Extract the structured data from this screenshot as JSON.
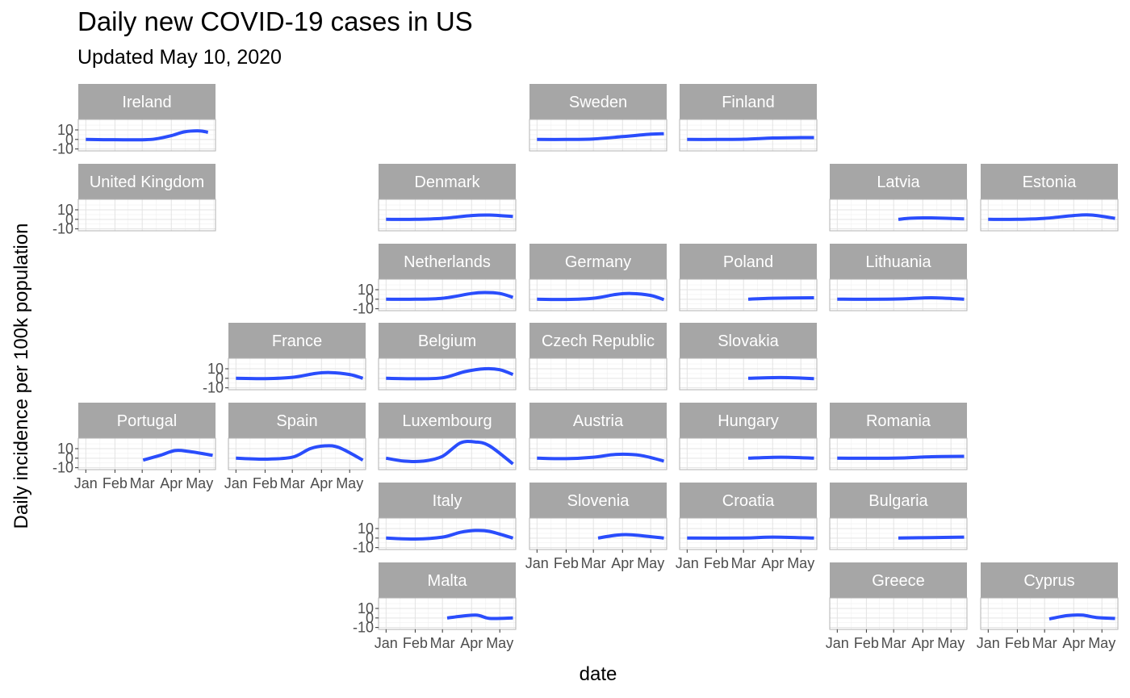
{
  "chart_data": {
    "type": "line",
    "title": "Daily new COVID-19 cases in US",
    "subtitle": "Updated May 10, 2020",
    "xlabel": "date",
    "ylabel": "Daily incidence per 100k population",
    "x_ticks": [
      "Jan",
      "Feb",
      "Mar",
      "Apr",
      "May"
    ],
    "y_ticks": [
      -10,
      0,
      10
    ],
    "ylim": [
      -12,
      21
    ],
    "x_range": [
      "2019-12-24",
      "2020-05-18"
    ],
    "layout": "geographic facet grid",
    "line_color": "#2a4dfc",
    "strip_color": "#a6a6a6",
    "series": [
      {
        "name": "Ireland",
        "points": [
          [
            "2020-01-01",
            0
          ],
          [
            "2020-01-20",
            -0.2
          ],
          [
            "2020-02-10",
            -0.3
          ],
          [
            "2020-03-01",
            -0.3
          ],
          [
            "2020-03-15",
            0.5
          ],
          [
            "2020-04-01",
            4
          ],
          [
            "2020-04-15",
            8
          ],
          [
            "2020-05-01",
            9
          ],
          [
            "2020-05-10",
            7.5
          ]
        ]
      },
      {
        "name": "United Kingdom",
        "points": []
      },
      {
        "name": "Sweden",
        "points": [
          [
            "2020-01-01",
            0
          ],
          [
            "2020-02-01",
            0
          ],
          [
            "2020-03-01",
            0.5
          ],
          [
            "2020-04-01",
            3
          ],
          [
            "2020-05-01",
            5.5
          ],
          [
            "2020-05-15",
            6
          ]
        ]
      },
      {
        "name": "Finland",
        "points": [
          [
            "2020-01-01",
            0
          ],
          [
            "2020-02-01",
            0
          ],
          [
            "2020-03-01",
            0.3
          ],
          [
            "2020-04-01",
            1.5
          ],
          [
            "2020-05-01",
            2
          ],
          [
            "2020-05-15",
            2
          ]
        ]
      },
      {
        "name": "Denmark",
        "points": [
          [
            "2020-01-01",
            0
          ],
          [
            "2020-02-01",
            0
          ],
          [
            "2020-03-01",
            1
          ],
          [
            "2020-04-01",
            4
          ],
          [
            "2020-04-20",
            4.5
          ],
          [
            "2020-05-15",
            3
          ]
        ]
      },
      {
        "name": "Latvia",
        "points": [
          [
            "2020-03-06",
            0
          ],
          [
            "2020-03-20",
            1.2
          ],
          [
            "2020-04-10",
            1.5
          ],
          [
            "2020-05-15",
            0.5
          ]
        ]
      },
      {
        "name": "Estonia",
        "points": [
          [
            "2020-01-01",
            0
          ],
          [
            "2020-02-01",
            0
          ],
          [
            "2020-03-01",
            1
          ],
          [
            "2020-04-01",
            4
          ],
          [
            "2020-04-20",
            4.5
          ],
          [
            "2020-05-15",
            1
          ]
        ]
      },
      {
        "name": "Netherlands",
        "points": [
          [
            "2020-01-01",
            0
          ],
          [
            "2020-02-01",
            0
          ],
          [
            "2020-03-01",
            1
          ],
          [
            "2020-04-01",
            6
          ],
          [
            "2020-04-15",
            7
          ],
          [
            "2020-05-01",
            6
          ],
          [
            "2020-05-15",
            2
          ]
        ]
      },
      {
        "name": "Germany",
        "points": [
          [
            "2020-01-01",
            0
          ],
          [
            "2020-02-01",
            -0.2
          ],
          [
            "2020-03-01",
            1
          ],
          [
            "2020-03-25",
            5
          ],
          [
            "2020-04-10",
            6
          ],
          [
            "2020-05-01",
            4
          ],
          [
            "2020-05-15",
            -0.5
          ]
        ]
      },
      {
        "name": "Poland",
        "points": [
          [
            "2020-03-06",
            0
          ],
          [
            "2020-04-01",
            1
          ],
          [
            "2020-05-15",
            1.5
          ]
        ]
      },
      {
        "name": "Lithuania",
        "points": [
          [
            "2020-01-01",
            0
          ],
          [
            "2020-03-01",
            0.2
          ],
          [
            "2020-04-10",
            1.5
          ],
          [
            "2020-05-15",
            0
          ]
        ]
      },
      {
        "name": "France",
        "points": [
          [
            "2020-01-01",
            0
          ],
          [
            "2020-02-01",
            -0.3
          ],
          [
            "2020-03-01",
            1
          ],
          [
            "2020-03-25",
            5
          ],
          [
            "2020-04-10",
            6
          ],
          [
            "2020-05-01",
            4
          ],
          [
            "2020-05-15",
            0
          ]
        ]
      },
      {
        "name": "Belgium",
        "points": [
          [
            "2020-01-01",
            0
          ],
          [
            "2020-02-01",
            -0.5
          ],
          [
            "2020-03-01",
            0.5
          ],
          [
            "2020-03-25",
            7
          ],
          [
            "2020-04-15",
            10
          ],
          [
            "2020-05-01",
            9
          ],
          [
            "2020-05-15",
            4
          ]
        ]
      },
      {
        "name": "Czech Republic",
        "points": []
      },
      {
        "name": "Slovakia",
        "points": [
          [
            "2020-03-06",
            0
          ],
          [
            "2020-04-10",
            0.8
          ],
          [
            "2020-05-15",
            -0.3
          ]
        ]
      },
      {
        "name": "Portugal",
        "points": [
          [
            "2020-03-02",
            -2
          ],
          [
            "2020-03-20",
            3
          ],
          [
            "2020-04-05",
            8
          ],
          [
            "2020-04-20",
            7
          ],
          [
            "2020-05-15",
            3
          ]
        ]
      },
      {
        "name": "Spain",
        "points": [
          [
            "2020-01-01",
            0
          ],
          [
            "2020-02-01",
            -1
          ],
          [
            "2020-03-01",
            1
          ],
          [
            "2020-03-20",
            10
          ],
          [
            "2020-04-05",
            13
          ],
          [
            "2020-04-20",
            11
          ],
          [
            "2020-05-15",
            -2
          ]
        ]
      },
      {
        "name": "Luxembourg",
        "points": [
          [
            "2020-01-01",
            0
          ],
          [
            "2020-01-20",
            -3
          ],
          [
            "2020-02-10",
            -3
          ],
          [
            "2020-03-01",
            2
          ],
          [
            "2020-03-20",
            16
          ],
          [
            "2020-04-05",
            17
          ],
          [
            "2020-04-20",
            13
          ],
          [
            "2020-05-15",
            -6
          ]
        ]
      },
      {
        "name": "Austria",
        "points": [
          [
            "2020-01-01",
            0
          ],
          [
            "2020-02-01",
            -0.5
          ],
          [
            "2020-03-01",
            1
          ],
          [
            "2020-03-25",
            4
          ],
          [
            "2020-04-20",
            3
          ],
          [
            "2020-05-15",
            -3
          ]
        ]
      },
      {
        "name": "Hungary",
        "points": [
          [
            "2020-03-06",
            0
          ],
          [
            "2020-04-10",
            1
          ],
          [
            "2020-05-15",
            0
          ]
        ]
      },
      {
        "name": "Romania",
        "points": [
          [
            "2020-01-01",
            0
          ],
          [
            "2020-03-01",
            0
          ],
          [
            "2020-04-10",
            1.5
          ],
          [
            "2020-05-15",
            2
          ]
        ]
      },
      {
        "name": "Italy",
        "points": [
          [
            "2020-01-01",
            0
          ],
          [
            "2020-02-01",
            -1
          ],
          [
            "2020-03-01",
            1
          ],
          [
            "2020-03-20",
            6
          ],
          [
            "2020-04-05",
            8
          ],
          [
            "2020-04-20",
            7
          ],
          [
            "2020-05-15",
            0
          ]
        ]
      },
      {
        "name": "Slovenia",
        "points": [
          [
            "2020-03-06",
            0
          ],
          [
            "2020-03-25",
            3
          ],
          [
            "2020-04-10",
            3.5
          ],
          [
            "2020-05-15",
            0
          ]
        ]
      },
      {
        "name": "Croatia",
        "points": [
          [
            "2020-01-01",
            0
          ],
          [
            "2020-03-01",
            0
          ],
          [
            "2020-04-01",
            1
          ],
          [
            "2020-05-15",
            0
          ]
        ]
      },
      {
        "name": "Bulgaria",
        "points": [
          [
            "2020-03-06",
            0
          ],
          [
            "2020-04-10",
            0.5
          ],
          [
            "2020-05-15",
            1
          ]
        ]
      },
      {
        "name": "Malta",
        "points": [
          [
            "2020-03-06",
            0
          ],
          [
            "2020-04-05",
            3
          ],
          [
            "2020-04-20",
            -0.5
          ],
          [
            "2020-05-15",
            0
          ]
        ]
      },
      {
        "name": "Greece",
        "points": []
      },
      {
        "name": "Cyprus",
        "points": [
          [
            "2020-03-06",
            -1
          ],
          [
            "2020-03-25",
            2.5
          ],
          [
            "2020-04-10",
            3
          ],
          [
            "2020-04-25",
            0.5
          ],
          [
            "2020-05-15",
            -0.5
          ]
        ]
      }
    ]
  }
}
